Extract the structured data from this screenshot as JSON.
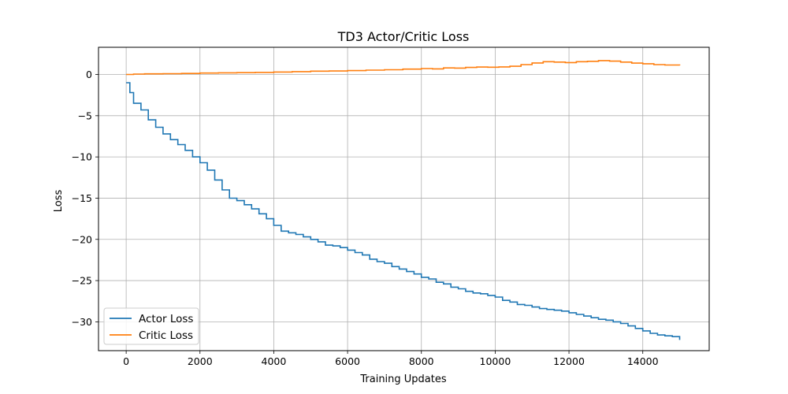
{
  "chart_data": {
    "type": "line",
    "title": "TD3 Actor/Critic Loss",
    "xlabel": "Training Updates",
    "ylabel": "Loss",
    "xlim": [
      -750,
      15800
    ],
    "ylim": [
      -33.5,
      3.3
    ],
    "xticks": [
      0,
      2000,
      4000,
      6000,
      8000,
      10000,
      12000,
      14000
    ],
    "xtick_labels": [
      "0",
      "2000",
      "4000",
      "6000",
      "8000",
      "10000",
      "12000",
      "14000"
    ],
    "yticks": [
      0,
      -5,
      -10,
      -15,
      -20,
      -25,
      -30
    ],
    "ytick_labels": [
      "0",
      "−5",
      "−10",
      "−15",
      "−20",
      "−25",
      "−30"
    ],
    "grid": true,
    "legend_position": "lower-left",
    "series": [
      {
        "name": "Actor Loss",
        "color": "#1f77b4",
        "x": [
          0,
          100,
          200,
          400,
          600,
          800,
          1000,
          1200,
          1400,
          1600,
          1800,
          2000,
          2200,
          2400,
          2600,
          2800,
          3000,
          3200,
          3400,
          3600,
          3800,
          4000,
          4200,
          4400,
          4600,
          4800,
          5000,
          5200,
          5400,
          5600,
          5800,
          6000,
          6200,
          6400,
          6600,
          6800,
          7000,
          7200,
          7400,
          7600,
          7800,
          8000,
          8200,
          8400,
          8600,
          8800,
          9000,
          9200,
          9400,
          9600,
          9800,
          10000,
          10200,
          10400,
          10600,
          10800,
          11000,
          11200,
          11400,
          11600,
          11800,
          12000,
          12200,
          12400,
          12600,
          12800,
          13000,
          13200,
          13400,
          13600,
          13800,
          14000,
          14200,
          14400,
          14600,
          14800,
          15000
        ],
        "y": [
          -1.0,
          -2.2,
          -3.5,
          -4.3,
          -5.5,
          -6.4,
          -7.2,
          -7.9,
          -8.5,
          -9.2,
          -10.0,
          -10.7,
          -11.6,
          -12.8,
          -14.0,
          -15.0,
          -15.3,
          -15.8,
          -16.3,
          -16.9,
          -17.5,
          -18.3,
          -19.0,
          -19.2,
          -19.4,
          -19.7,
          -20.0,
          -20.3,
          -20.7,
          -20.8,
          -21.0,
          -21.3,
          -21.6,
          -21.9,
          -22.4,
          -22.7,
          -22.9,
          -23.3,
          -23.6,
          -23.9,
          -24.2,
          -24.6,
          -24.8,
          -25.2,
          -25.4,
          -25.8,
          -26.0,
          -26.3,
          -26.5,
          -26.6,
          -26.8,
          -27.0,
          -27.4,
          -27.6,
          -27.9,
          -28.0,
          -28.2,
          -28.4,
          -28.5,
          -28.6,
          -28.7,
          -28.9,
          -29.1,
          -29.3,
          -29.5,
          -29.7,
          -29.8,
          -30.0,
          -30.2,
          -30.5,
          -30.8,
          -31.1,
          -31.4,
          -31.6,
          -31.7,
          -31.8,
          -32.2
        ]
      },
      {
        "name": "Critic Loss",
        "color": "#ff7f0e",
        "x": [
          0,
          200,
          500,
          1000,
          1500,
          2000,
          2500,
          3000,
          3500,
          4000,
          4500,
          5000,
          5500,
          6000,
          6500,
          7000,
          7500,
          8000,
          8300,
          8600,
          8900,
          9200,
          9500,
          9800,
          10100,
          10400,
          10700,
          11000,
          11300,
          11600,
          11900,
          12200,
          12500,
          12800,
          13100,
          13400,
          13700,
          14000,
          14300,
          14600,
          15000
        ],
        "y": [
          0.0,
          0.05,
          0.08,
          0.1,
          0.13,
          0.17,
          0.2,
          0.22,
          0.25,
          0.3,
          0.35,
          0.4,
          0.42,
          0.47,
          0.53,
          0.58,
          0.65,
          0.72,
          0.68,
          0.8,
          0.78,
          0.85,
          0.9,
          0.88,
          0.92,
          1.0,
          1.2,
          1.4,
          1.55,
          1.5,
          1.45,
          1.55,
          1.6,
          1.68,
          1.62,
          1.5,
          1.38,
          1.3,
          1.2,
          1.15,
          1.1
        ]
      }
    ]
  }
}
